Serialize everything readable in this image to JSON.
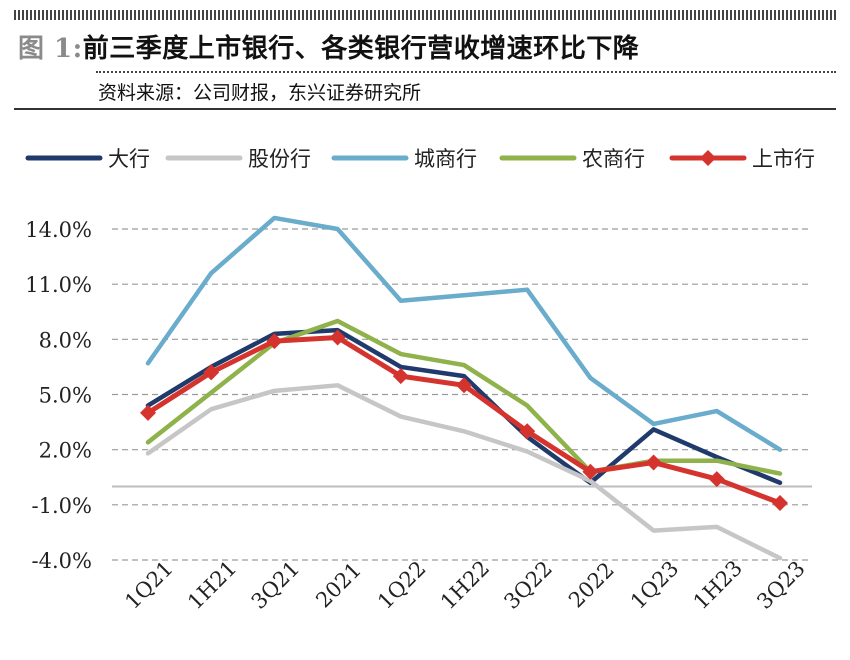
{
  "header": {
    "figure_label": "图 1:",
    "title": "前三季度上市银行、各类银行营收增速环比下降",
    "source": "资料来源：公司财报，东兴证券研究所"
  },
  "chart_data": {
    "type": "line",
    "categories": [
      "1Q21",
      "1H21",
      "3Q21",
      "2021",
      "1Q22",
      "1H22",
      "3Q22",
      "2022",
      "1Q23",
      "1H23",
      "3Q23"
    ],
    "y_ticks": [
      "14.0%",
      "11.0%",
      "8.0%",
      "5.0%",
      "2.0%",
      "-1.0%",
      "-4.0%"
    ],
    "y_tick_values": [
      14,
      11,
      8,
      5,
      2,
      -1,
      -4
    ],
    "ylim": [
      -4,
      14
    ],
    "grid": true,
    "legend_position": "top",
    "series": [
      {
        "name": "大行",
        "color": "#1f3a6b",
        "marker": "none",
        "values": [
          4.4,
          6.5,
          8.3,
          8.5,
          6.5,
          6.0,
          2.7,
          0.2,
          3.1,
          1.6,
          0.2
        ]
      },
      {
        "name": "股份行",
        "color": "#c6c6c6",
        "marker": "none",
        "values": [
          1.8,
          4.2,
          5.2,
          5.5,
          3.8,
          3.0,
          1.9,
          0.3,
          -2.4,
          -2.2,
          -3.9
        ]
      },
      {
        "name": "城商行",
        "color": "#6aaccb",
        "marker": "none",
        "values": [
          6.7,
          11.6,
          14.6,
          14.0,
          10.1,
          10.4,
          10.7,
          5.9,
          3.4,
          4.1,
          2.0
        ]
      },
      {
        "name": "农商行",
        "color": "#8fb24b",
        "marker": "none",
        "values": [
          2.4,
          5.1,
          7.8,
          9.0,
          7.2,
          6.6,
          4.4,
          0.8,
          1.4,
          1.4,
          0.7
        ]
      },
      {
        "name": "上市行",
        "color": "#d5332e",
        "marker": "diamond",
        "values": [
          4.0,
          6.2,
          7.9,
          8.1,
          6.0,
          5.5,
          3.0,
          0.8,
          1.3,
          0.4,
          -0.9
        ]
      }
    ]
  }
}
